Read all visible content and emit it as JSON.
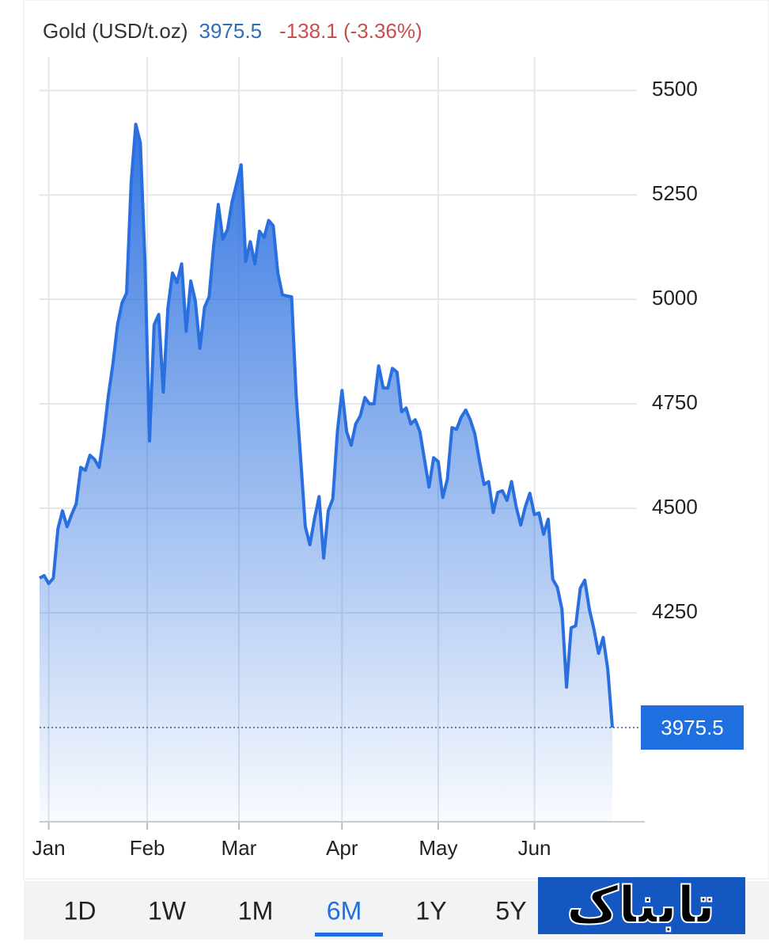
{
  "header": {
    "title": "Gold (USD/t.oz)",
    "change": "-138.1 (-3.36%)"
  },
  "tabs": {
    "items": [
      "1D",
      "1W",
      "1M",
      "6M",
      "1Y",
      "5Y"
    ],
    "selected": "6M"
  },
  "logo": "تابناک",
  "chart_data": {
    "type": "area",
    "color": "#2a6fdf",
    "values": [
      4333,
      4339,
      4320,
      4333,
      4451,
      4494,
      4456,
      4485,
      4511,
      4598,
      4591,
      4627,
      4617,
      4598,
      4674,
      4769,
      4845,
      4939,
      4992,
      5015,
      5280,
      5419,
      5375,
      5091,
      4661,
      4939,
      4964,
      4778,
      4979,
      5063,
      5040,
      5085,
      4924,
      5044,
      4996,
      4883,
      4981,
      5006,
      5129,
      5227,
      5144,
      5167,
      5233,
      5277,
      5322,
      5091,
      5138,
      5085,
      5163,
      5148,
      5189,
      5176,
      5063,
      5011,
      5008,
      5006,
      4769,
      4617,
      4456,
      4413,
      4475,
      4528,
      4381,
      4494,
      4523,
      4684,
      4782,
      4684,
      4651,
      4702,
      4721,
      4765,
      4750,
      4750,
      4841,
      4788,
      4788,
      4835,
      4826,
      4731,
      4740,
      4702,
      4712,
      4684,
      4617,
      4551,
      4621,
      4612,
      4526,
      4570,
      4693,
      4689,
      4718,
      4735,
      4712,
      4678,
      4614,
      4557,
      4564,
      4490,
      4538,
      4542,
      4519,
      4564,
      4504,
      4460,
      4504,
      4536,
      4485,
      4489,
      4438,
      4474,
      4330,
      4311,
      4258,
      4072,
      4214,
      4219,
      4309,
      4328,
      4258,
      4210,
      4153,
      4191,
      4115,
      3975.5
    ],
    "xlim": [
      0,
      125
    ],
    "xticks": [
      {
        "value": 2,
        "label": "Jan"
      },
      {
        "value": 23.5,
        "label": "Feb"
      },
      {
        "value": 43.5,
        "label": "Mar"
      },
      {
        "value": 66,
        "label": "Apr"
      },
      {
        "value": 87,
        "label": "May"
      },
      {
        "value": 108,
        "label": "Jun"
      }
    ],
    "ylim": [
      3750,
      5580
    ],
    "yticks": [
      4250,
      4500,
      4750,
      5000,
      5250,
      5500
    ],
    "grid": true
  }
}
